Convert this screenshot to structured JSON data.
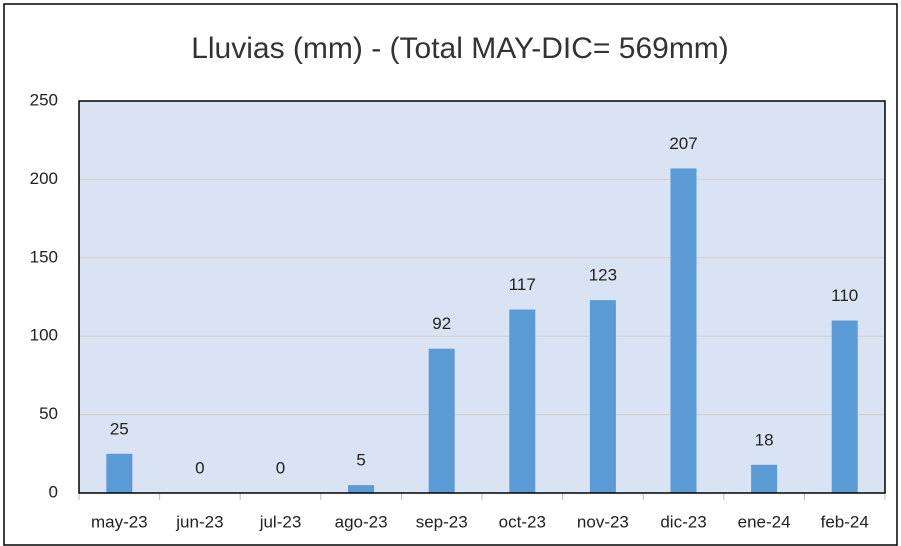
{
  "chart_data": {
    "type": "bar",
    "title": "Lluvias (mm) - (Total MAY-DIC= 569mm)",
    "categories": [
      "may-23",
      "jun-23",
      "jul-23",
      "ago-23",
      "sep-23",
      "oct-23",
      "nov-23",
      "dic-23",
      "ene-24",
      "feb-24"
    ],
    "values": [
      25,
      0,
      0,
      5,
      92,
      117,
      123,
      207,
      18,
      110
    ],
    "color": "#5b9bd5",
    "ylim": [
      0,
      250
    ],
    "yticks": [
      0,
      50,
      100,
      150,
      200,
      250
    ],
    "grid": true,
    "data_labels": true
  }
}
